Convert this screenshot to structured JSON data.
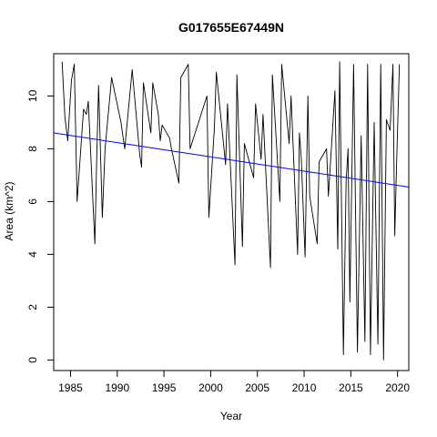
{
  "chart_data": {
    "type": "line",
    "title": "G017655E67449N",
    "xlabel": "Year",
    "ylabel": "Area (km^2)",
    "xlim": [
      1983.2,
      2021.2
    ],
    "ylim": [
      -0.4,
      11.6
    ],
    "x_ticks": [
      1985,
      1990,
      1995,
      2000,
      2005,
      2010,
      2015,
      2020
    ],
    "y_ticks": [
      0,
      2,
      4,
      6,
      8,
      10
    ],
    "grid": false,
    "colors": {
      "series": "#000000",
      "trend": "#0000ff"
    },
    "series": [
      {
        "x": [
          1984.1,
          1984.4,
          1984.7,
          1985.1,
          1985.4,
          1985.7,
          1986.4,
          1986.7,
          1986.9,
          1987.6,
          1987.8,
          1988.0,
          1988.4,
          1988.7,
          1989.4,
          1990.4,
          1990.6,
          1990.8,
          1991.6,
          1992.4,
          1992.6,
          1992.8,
          1993.6,
          1993.8,
          1994.4,
          1994.6,
          1994.8,
          1995.6,
          1995.8,
          1996.6,
          1996.8,
          1997.6,
          1997.8,
          1999.6,
          1999.8,
          2000.4,
          2000.6,
          2001.6,
          2001.8,
          2002.6,
          2002.8,
          2003.4,
          2003.6,
          2004.6,
          2004.8,
          2005.4,
          2005.6,
          2006.4,
          2006.6,
          2007.4,
          2007.6,
          2008.4,
          2008.6,
          2009.3,
          2009.5,
          2009.7,
          2010.1,
          2010.4,
          2010.6,
          2011.4,
          2011.6,
          2012.4,
          2012.6,
          2013.3,
          2013.6,
          2013.8,
          2014.2,
          2014.5,
          2014.7,
          2014.9,
          2015.3,
          2015.7,
          2016.1,
          2016.5,
          2016.8,
          2017.1,
          2017.5,
          2017.9,
          2018.2,
          2018.5,
          2018.8,
          2019.2,
          2019.5,
          2019.7,
          2019.9,
          2020.2
        ],
        "y": [
          11.3,
          9.2,
          8.3,
          10.6,
          11.2,
          6.0,
          9.5,
          9.3,
          9.8,
          4.4,
          7.6,
          10.4,
          5.4,
          8.0,
          10.7,
          9.0,
          8.5,
          8.0,
          11.0,
          7.8,
          7.3,
          10.5,
          8.6,
          10.5,
          9.3,
          8.3,
          8.9,
          8.4,
          8.0,
          6.7,
          10.7,
          11.2,
          8.0,
          10.0,
          5.4,
          8.8,
          10.9,
          7.4,
          9.7,
          3.6,
          10.8,
          4.3,
          8.2,
          6.9,
          9.7,
          7.6,
          9.3,
          3.5,
          10.8,
          6.0,
          11.2,
          8.2,
          10.0,
          4.0,
          8.6,
          7.6,
          3.9,
          10.0,
          6.2,
          4.4,
          7.5,
          8.0,
          6.2,
          10.2,
          4.2,
          11.3,
          0.2,
          6.8,
          8.0,
          2.2,
          11.2,
          0.3,
          8.5,
          0.7,
          11.2,
          0.2,
          9.0,
          0.6,
          11.2,
          0.0,
          9.1,
          8.7,
          11.2,
          4.7,
          7.5,
          11.2
        ]
      }
    ],
    "trend": {
      "x": [
        1983.2,
        2021.2
      ],
      "y": [
        8.6,
        6.55
      ]
    }
  }
}
